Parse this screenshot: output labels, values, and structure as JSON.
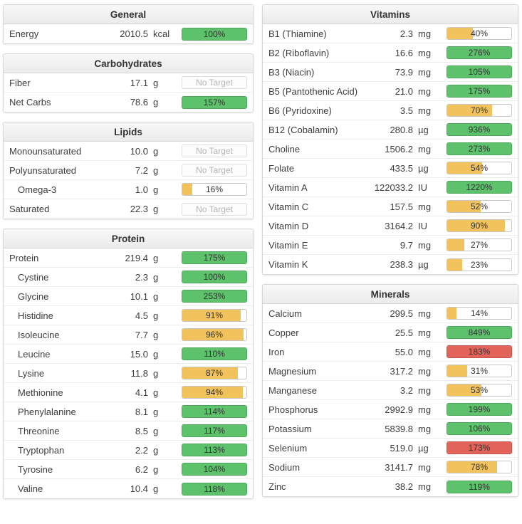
{
  "labels": {
    "no_target": "No Target"
  },
  "colors": {
    "green": "#5ec16c",
    "green_border": "#4da75b",
    "yellow": "#f2c35c",
    "yellow_border": "#d9a94a",
    "red": "#e2635a",
    "red_border": "#c6544d",
    "bar_border": "#c6c6c6"
  },
  "panels": {
    "general": {
      "title": "General",
      "rows": [
        {
          "label": "Energy",
          "value": "2010.5",
          "unit": "kcal",
          "percent": 100,
          "percent_label": "100%",
          "status": "green"
        }
      ]
    },
    "carbohydrates": {
      "title": "Carbohydrates",
      "rows": [
        {
          "label": "Fiber",
          "value": "17.1",
          "unit": "g",
          "status": "none"
        },
        {
          "label": "Net Carbs",
          "value": "78.6",
          "unit": "g",
          "percent": 157,
          "percent_label": "157%",
          "status": "green"
        }
      ]
    },
    "lipids": {
      "title": "Lipids",
      "rows": [
        {
          "label": "Monounsaturated",
          "value": "10.0",
          "unit": "g",
          "status": "none"
        },
        {
          "label": "Polyunsaturated",
          "value": "7.2",
          "unit": "g",
          "status": "none"
        },
        {
          "label": "Omega-3",
          "value": "1.0",
          "unit": "g",
          "percent": 16,
          "percent_label": "16%",
          "status": "yellow",
          "indent": true
        },
        {
          "label": "Saturated",
          "value": "22.3",
          "unit": "g",
          "status": "none"
        }
      ]
    },
    "protein": {
      "title": "Protein",
      "rows": [
        {
          "label": "Protein",
          "value": "219.4",
          "unit": "g",
          "percent": 175,
          "percent_label": "175%",
          "status": "green"
        },
        {
          "label": "Cystine",
          "value": "2.3",
          "unit": "g",
          "percent": 100,
          "percent_label": "100%",
          "status": "green",
          "indent": true
        },
        {
          "label": "Glycine",
          "value": "10.1",
          "unit": "g",
          "percent": 253,
          "percent_label": "253%",
          "status": "green",
          "indent": true
        },
        {
          "label": "Histidine",
          "value": "4.5",
          "unit": "g",
          "percent": 91,
          "percent_label": "91%",
          "status": "yellow",
          "indent": true
        },
        {
          "label": "Isoleucine",
          "value": "7.7",
          "unit": "g",
          "percent": 96,
          "percent_label": "96%",
          "status": "yellow",
          "indent": true
        },
        {
          "label": "Leucine",
          "value": "15.0",
          "unit": "g",
          "percent": 110,
          "percent_label": "110%",
          "status": "green",
          "indent": true
        },
        {
          "label": "Lysine",
          "value": "11.8",
          "unit": "g",
          "percent": 87,
          "percent_label": "87%",
          "status": "yellow",
          "indent": true
        },
        {
          "label": "Methionine",
          "value": "4.1",
          "unit": "g",
          "percent": 94,
          "percent_label": "94%",
          "status": "yellow",
          "indent": true
        },
        {
          "label": "Phenylalanine",
          "value": "8.1",
          "unit": "g",
          "percent": 114,
          "percent_label": "114%",
          "status": "green",
          "indent": true
        },
        {
          "label": "Threonine",
          "value": "8.5",
          "unit": "g",
          "percent": 117,
          "percent_label": "117%",
          "status": "green",
          "indent": true
        },
        {
          "label": "Tryptophan",
          "value": "2.2",
          "unit": "g",
          "percent": 113,
          "percent_label": "113%",
          "status": "green",
          "indent": true
        },
        {
          "label": "Tyrosine",
          "value": "6.2",
          "unit": "g",
          "percent": 104,
          "percent_label": "104%",
          "status": "green",
          "indent": true
        },
        {
          "label": "Valine",
          "value": "10.4",
          "unit": "g",
          "percent": 118,
          "percent_label": "118%",
          "status": "green",
          "indent": true
        }
      ]
    },
    "vitamins": {
      "title": "Vitamins",
      "rows": [
        {
          "label": "B1 (Thiamine)",
          "value": "2.3",
          "unit": "mg",
          "percent": 40,
          "percent_label": "40%",
          "status": "yellow"
        },
        {
          "label": "B2 (Riboflavin)",
          "value": "16.6",
          "unit": "mg",
          "percent": 276,
          "percent_label": "276%",
          "status": "green"
        },
        {
          "label": "B3 (Niacin)",
          "value": "73.9",
          "unit": "mg",
          "percent": 105,
          "percent_label": "105%",
          "status": "green"
        },
        {
          "label": "B5 (Pantothenic Acid)",
          "value": "21.0",
          "unit": "mg",
          "percent": 175,
          "percent_label": "175%",
          "status": "green"
        },
        {
          "label": "B6 (Pyridoxine)",
          "value": "3.5",
          "unit": "mg",
          "percent": 70,
          "percent_label": "70%",
          "status": "yellow"
        },
        {
          "label": "B12 (Cobalamin)",
          "value": "280.8",
          "unit": "µg",
          "percent": 936,
          "percent_label": "936%",
          "status": "green"
        },
        {
          "label": "Choline",
          "value": "1506.2",
          "unit": "mg",
          "percent": 273,
          "percent_label": "273%",
          "status": "green"
        },
        {
          "label": "Folate",
          "value": "433.5",
          "unit": "µg",
          "percent": 54,
          "percent_label": "54%",
          "status": "yellow"
        },
        {
          "label": "Vitamin A",
          "value": "122033.2",
          "unit": "IU",
          "percent": 1220,
          "percent_label": "1220%",
          "status": "green"
        },
        {
          "label": "Vitamin C",
          "value": "157.5",
          "unit": "mg",
          "percent": 52,
          "percent_label": "52%",
          "status": "yellow"
        },
        {
          "label": "Vitamin D",
          "value": "3164.2",
          "unit": "IU",
          "percent": 90,
          "percent_label": "90%",
          "status": "yellow"
        },
        {
          "label": "Vitamin E",
          "value": "9.7",
          "unit": "mg",
          "percent": 27,
          "percent_label": "27%",
          "status": "yellow"
        },
        {
          "label": "Vitamin K",
          "value": "238.3",
          "unit": "µg",
          "percent": 23,
          "percent_label": "23%",
          "status": "yellow"
        }
      ]
    },
    "minerals": {
      "title": "Minerals",
      "rows": [
        {
          "label": "Calcium",
          "value": "299.5",
          "unit": "mg",
          "percent": 14,
          "percent_label": "14%",
          "status": "yellow"
        },
        {
          "label": "Copper",
          "value": "25.5",
          "unit": "mg",
          "percent": 849,
          "percent_label": "849%",
          "status": "green"
        },
        {
          "label": "Iron",
          "value": "55.0",
          "unit": "mg",
          "percent": 183,
          "percent_label": "183%",
          "status": "red"
        },
        {
          "label": "Magnesium",
          "value": "317.2",
          "unit": "mg",
          "percent": 31,
          "percent_label": "31%",
          "status": "yellow"
        },
        {
          "label": "Manganese",
          "value": "3.2",
          "unit": "mg",
          "percent": 53,
          "percent_label": "53%",
          "status": "yellow"
        },
        {
          "label": "Phosphorus",
          "value": "2992.9",
          "unit": "mg",
          "percent": 199,
          "percent_label": "199%",
          "status": "green"
        },
        {
          "label": "Potassium",
          "value": "5839.8",
          "unit": "mg",
          "percent": 106,
          "percent_label": "106%",
          "status": "green"
        },
        {
          "label": "Selenium",
          "value": "519.0",
          "unit": "µg",
          "percent": 173,
          "percent_label": "173%",
          "status": "red"
        },
        {
          "label": "Sodium",
          "value": "3141.7",
          "unit": "mg",
          "percent": 78,
          "percent_label": "78%",
          "status": "yellow"
        },
        {
          "label": "Zinc",
          "value": "38.2",
          "unit": "mg",
          "percent": 119,
          "percent_label": "119%",
          "status": "green"
        }
      ]
    }
  }
}
